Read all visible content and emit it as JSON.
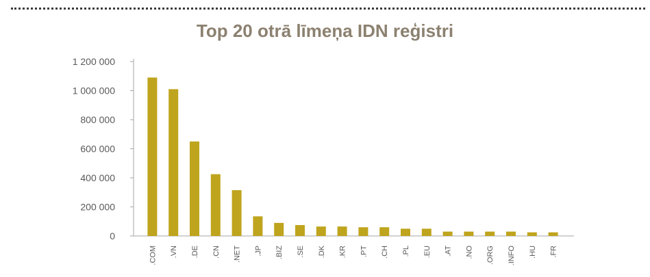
{
  "chart_data": {
    "type": "bar",
    "title": "Top 20 otrā līmeņa IDN reģistri",
    "xlabel": "",
    "ylabel": "",
    "ylim": [
      0,
      1200000
    ],
    "yticks": [
      0,
      200000,
      400000,
      600000,
      800000,
      1000000,
      1200000
    ],
    "ytick_labels": [
      "0",
      "200 000",
      "400 000",
      "600 000",
      "800 000",
      "1 000 000",
      "1 200 000"
    ],
    "categories": [
      ".COM",
      ".VN",
      ".DE",
      ".CN",
      ".NET",
      ".JP",
      ".BIZ",
      ".SE",
      ".DK",
      ".KR",
      ".PT",
      ".CH",
      ".PL",
      ".EU",
      ".AT",
      ".NO",
      ".ORG",
      ".INFO",
      ".HU",
      ".FR"
    ],
    "values": [
      1090000,
      1010000,
      650000,
      425000,
      315000,
      135000,
      90000,
      75000,
      65000,
      65000,
      60000,
      60000,
      50000,
      50000,
      30000,
      30000,
      30000,
      30000,
      25000,
      25000
    ],
    "grid": false,
    "legend": "none",
    "colors": {
      "bar": "#bfa41d",
      "axis": "#a6a6a6",
      "title": "#8c8170",
      "text": "#595959"
    }
  }
}
